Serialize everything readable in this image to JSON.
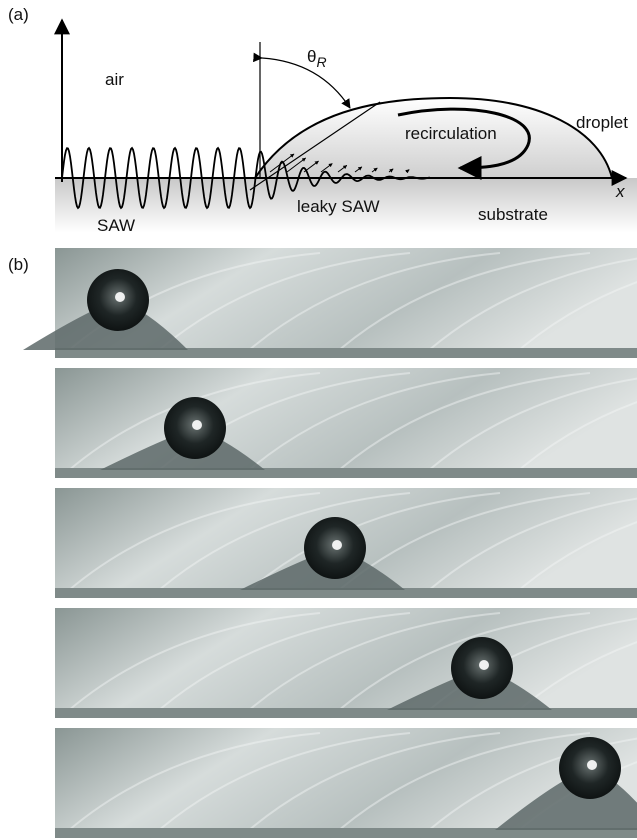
{
  "panel_a": {
    "label": "(a)",
    "air": "air",
    "theta_symbol": "θ",
    "theta_subscript": "R",
    "recirculation": "recirculation",
    "droplet": "droplet",
    "x_axis": "x",
    "saw": "SAW",
    "leaky_saw": "leaky SAW",
    "substrate": "substrate"
  },
  "panel_b": {
    "label": "(b)"
  }
}
